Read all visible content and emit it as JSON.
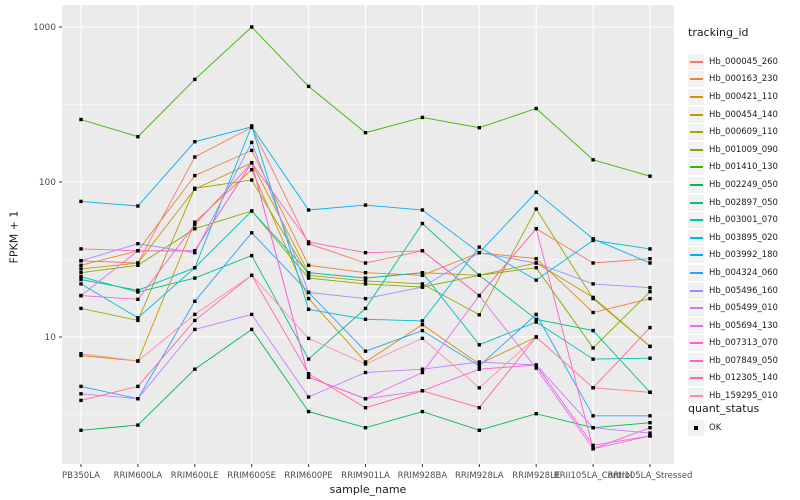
{
  "chart_data": {
    "type": "line",
    "title": "",
    "xlabel": "sample_name",
    "ylabel": "FPKM + 1",
    "y_scale": "log10",
    "y_breaks": [
      10,
      100,
      1000
    ],
    "y_minor_breaks": [
      3.162,
      31.62,
      316.2
    ],
    "ylim": [
      1.5,
      1320
    ],
    "grid": true,
    "legend_position": "right",
    "point_marker": "filled-square-black",
    "categories": [
      "PB350LA",
      "RRIM600LA",
      "RRIM600LE",
      "RRIM600SE",
      "RRIM600PE",
      "RRIM901LA",
      "RRIM928BA",
      "RRIM928LA",
      "RRIM928LE",
      "RRII105LA_Control",
      "RRII105LA_Stressed"
    ],
    "series": [
      {
        "name": "Hb_000045_260",
        "color": "#F8766D",
        "values": [
          31,
          30,
          145,
          225,
          40,
          30,
          36,
          18.5,
          50,
          30,
          32
        ]
      },
      {
        "name": "Hb_000163_230",
        "color": "#EA8331",
        "values": [
          29,
          36,
          110,
          160,
          29,
          26,
          25,
          35,
          32,
          14.4,
          17.7
        ]
      },
      {
        "name": "Hb_000421_110",
        "color": "#D89000",
        "values": [
          7.6,
          7,
          55,
          120,
          17.7,
          6.9,
          12,
          6.7,
          10,
          4.7,
          4.4
        ]
      },
      {
        "name": "Hb_000454_140",
        "color": "#C09B00",
        "values": [
          27.5,
          30,
          90,
          133,
          26,
          24,
          26,
          25,
          30,
          18,
          8.7
        ]
      },
      {
        "name": "Hb_000609_110",
        "color": "#A3A500",
        "values": [
          15.3,
          12.8,
          91,
          103,
          25,
          23,
          22,
          13.9,
          67,
          17.7,
          8.7
        ]
      },
      {
        "name": "Hb_001009_090",
        "color": "#7CAE00",
        "values": [
          26,
          29,
          50,
          65,
          24,
          22,
          21,
          25,
          28,
          8.5,
          19.6
        ]
      },
      {
        "name": "Hb_001410_130",
        "color": "#39B600",
        "values": [
          253,
          196,
          459,
          1000,
          414,
          208,
          261,
          224,
          298,
          139,
          109
        ]
      },
      {
        "name": "Hb_002249_050",
        "color": "#00BB4E",
        "values": [
          2.5,
          2.7,
          6.2,
          11.2,
          3.3,
          2.6,
          3.3,
          2.5,
          3.2,
          2.6,
          2.8
        ]
      },
      {
        "name": "Hb_002897_050",
        "color": "#00C087",
        "values": [
          24.5,
          19.5,
          24,
          33.5,
          7.2,
          15.3,
          54,
          25,
          13,
          11,
          4.4
        ]
      },
      {
        "name": "Hb_003001_070",
        "color": "#00C0B8",
        "values": [
          23.5,
          20,
          28,
          65,
          26,
          24,
          26,
          8.9,
          12.5,
          7.2,
          7.3
        ]
      },
      {
        "name": "Hb_003895_020",
        "color": "#00BCD8",
        "values": [
          22,
          13.3,
          28,
          230,
          15.1,
          13,
          12.7,
          38,
          23.3,
          42,
          37
        ]
      },
      {
        "name": "Hb_003992_180",
        "color": "#00B0F6",
        "values": [
          75,
          70,
          182,
          227,
          66,
          71,
          66,
          35,
          86,
          43,
          30
        ]
      },
      {
        "name": "Hb_004324_060",
        "color": "#29A3FF",
        "values": [
          4.8,
          4,
          17,
          47,
          19.4,
          8.1,
          11,
          6.5,
          14,
          3.1,
          3.1
        ]
      },
      {
        "name": "Hb_005496_160",
        "color": "#9590FF",
        "values": [
          31,
          40,
          35,
          180,
          19.4,
          17.7,
          21,
          35,
          30,
          22,
          20.8
        ]
      },
      {
        "name": "Hb_005499_010",
        "color": "#C77CFF",
        "values": [
          4.3,
          4,
          11.2,
          14,
          4.1,
          5.9,
          6.2,
          6.9,
          6.6,
          2.6,
          2.4
        ]
      },
      {
        "name": "Hb_005694_130",
        "color": "#E76BF3",
        "values": [
          18.5,
          36,
          36,
          133,
          5.5,
          4,
          5.9,
          18.5,
          6.3,
          1.9,
          2.3
        ]
      },
      {
        "name": "Hb_007313_070",
        "color": "#FA62DB",
        "values": [
          18.5,
          17.5,
          53,
          133,
          5.5,
          4,
          4.5,
          6.2,
          6.6,
          2,
          2.3
        ]
      },
      {
        "name": "Hb_007849_050",
        "color": "#FF61C7",
        "values": [
          37,
          36,
          36,
          133,
          41,
          35,
          36,
          18.5,
          50,
          1.9,
          2.6
        ]
      },
      {
        "name": "Hb_012305_140",
        "color": "#FF689E",
        "values": [
          3.9,
          4.8,
          12.8,
          25,
          5.8,
          3.5,
          4.5,
          3.5,
          10,
          4.7,
          11.5
        ]
      },
      {
        "name": "Hb_159295_010",
        "color": "#FF8DA8",
        "values": [
          7.8,
          7,
          14,
          25,
          9.8,
          6.7,
          9.8,
          4.7,
          10,
          4.7,
          4.4
        ]
      }
    ],
    "legend": {
      "title": "tracking_id"
    },
    "legend2": {
      "title": "quant_status",
      "items": [
        "OK"
      ]
    },
    "colors": {
      "panel_bg": "#EBEBEB",
      "grid": "#FFFFFF",
      "point": "#000000",
      "tick_text": "#4D4D4D",
      "tick_mark": "#333333",
      "legend_key_bg": "#F2F2F2"
    }
  }
}
